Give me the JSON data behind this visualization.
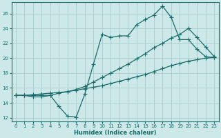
{
  "xlabel": "Humidex (Indice chaleur)",
  "bg_color": "#cce8e8",
  "grid_color": "#aacccc",
  "line_color": "#1a6b6b",
  "xlim": [
    -0.5,
    23.5
  ],
  "ylim": [
    11.5,
    27.5
  ],
  "xticks": [
    0,
    1,
    2,
    3,
    4,
    5,
    6,
    7,
    8,
    9,
    10,
    11,
    12,
    13,
    14,
    15,
    16,
    17,
    18,
    19,
    20,
    21,
    22,
    23
  ],
  "yticks": [
    12,
    14,
    16,
    18,
    20,
    22,
    24,
    26
  ],
  "line1_x": [
    0,
    1,
    2,
    3,
    4,
    5,
    6,
    7,
    8,
    9,
    10,
    11,
    12,
    13,
    14,
    15,
    16,
    17,
    18,
    19,
    20,
    21,
    22,
    23
  ],
  "line1_y": [
    15,
    15,
    14.8,
    14.8,
    15,
    13.5,
    12.2,
    12.1,
    15.2,
    19.2,
    23.2,
    22.8,
    23.0,
    23.0,
    24.5,
    25.2,
    25.8,
    27,
    25.5,
    22.5,
    22.5,
    21.2,
    20.2,
    20.1
  ],
  "line2_x": [
    0,
    1,
    2,
    3,
    4,
    5,
    6,
    7,
    8,
    9,
    10,
    11,
    12,
    13,
    14,
    15,
    16,
    17,
    18,
    19,
    20,
    21,
    22,
    23
  ],
  "line2_y": [
    15.0,
    15.0,
    15.0,
    15.0,
    15.0,
    15.3,
    15.5,
    15.8,
    16.2,
    16.8,
    17.4,
    18.0,
    18.6,
    19.2,
    19.9,
    20.6,
    21.4,
    22.0,
    22.7,
    23.2,
    24.0,
    22.8,
    21.5,
    20.2
  ],
  "line3_x": [
    0,
    1,
    2,
    3,
    4,
    5,
    6,
    7,
    8,
    9,
    10,
    11,
    12,
    13,
    14,
    15,
    16,
    17,
    18,
    19,
    20,
    21,
    22,
    23
  ],
  "line3_y": [
    15.0,
    15.0,
    15.1,
    15.2,
    15.3,
    15.4,
    15.5,
    15.7,
    15.9,
    16.1,
    16.3,
    16.6,
    16.9,
    17.2,
    17.5,
    17.8,
    18.2,
    18.6,
    19.0,
    19.3,
    19.6,
    19.8,
    20.0,
    20.1
  ]
}
